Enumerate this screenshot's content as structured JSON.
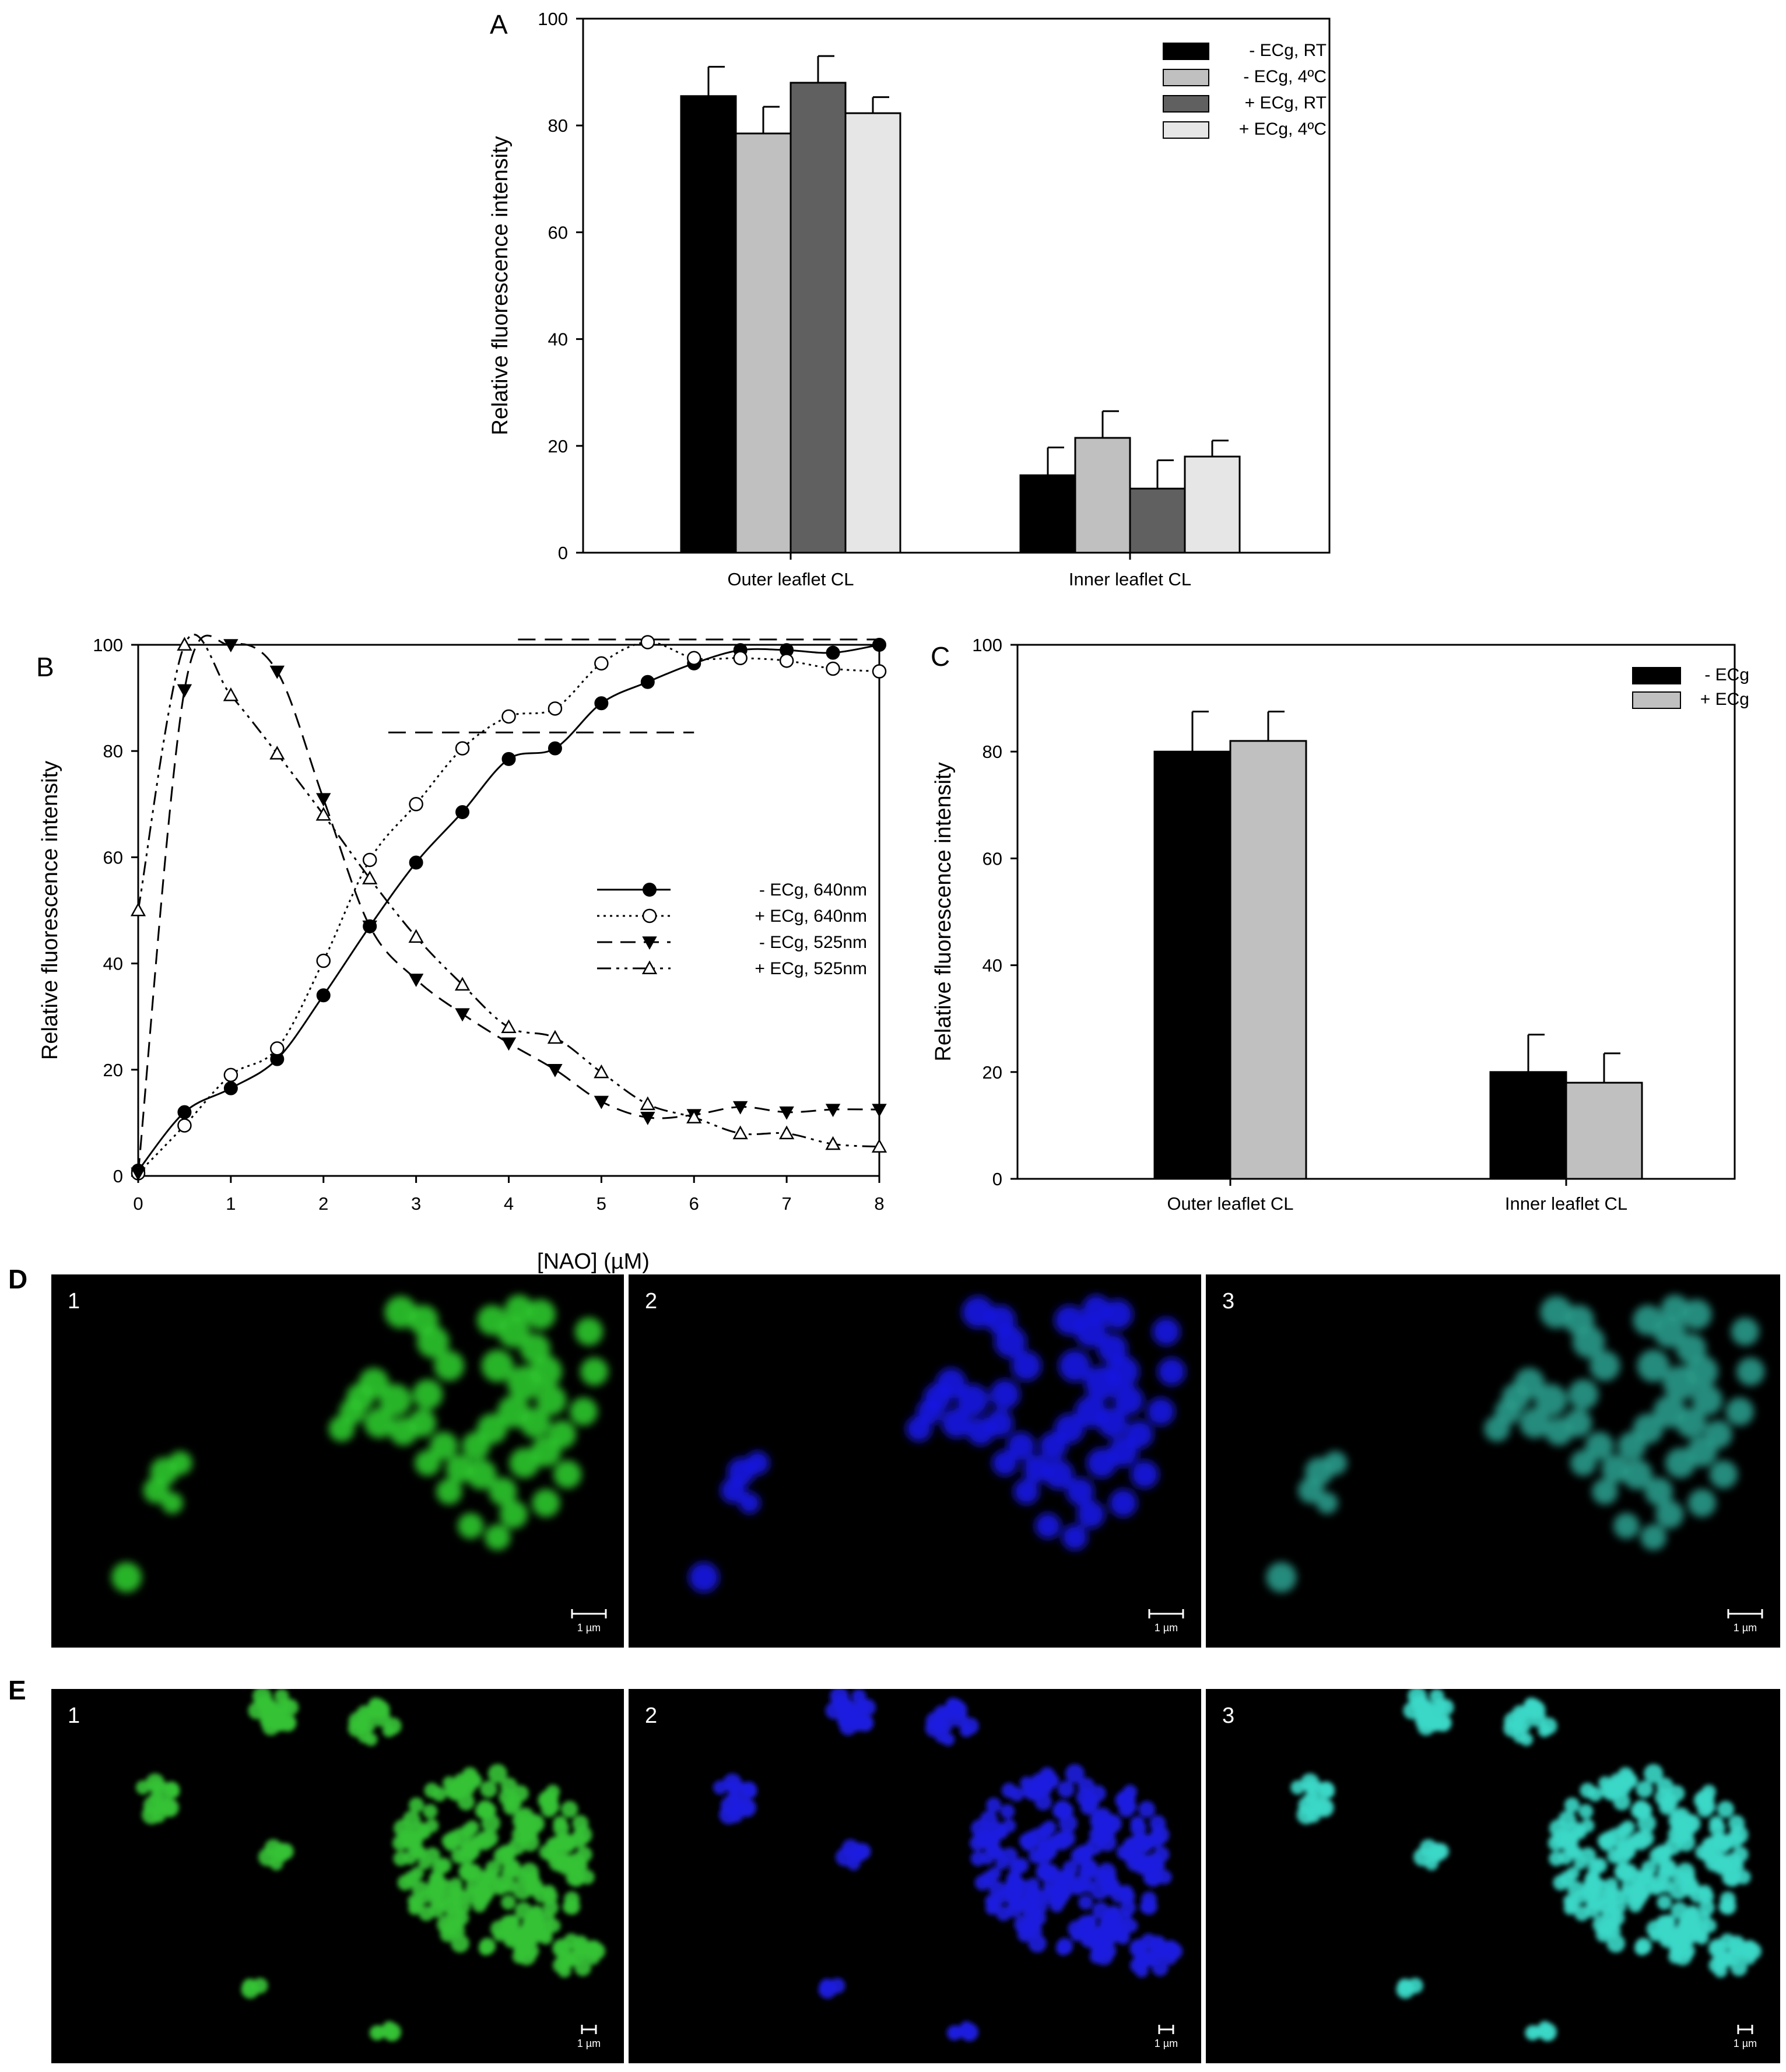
{
  "panels": {
    "A": "A",
    "B": "B",
    "C": "C",
    "D": "D",
    "E": "E"
  },
  "chart_data": [
    {
      "id": "A",
      "type": "bar",
      "ylabel": "Relative fluorescence intensity",
      "ylim": [
        0,
        100
      ],
      "yticks": [
        "0",
        "20",
        "40",
        "60",
        "80",
        "100"
      ],
      "categories": [
        "Outer leaflet CL",
        "Inner leaflet CL"
      ],
      "legend_position": "top-right",
      "series": [
        {
          "name": "- ECg, RT",
          "color": "#000000",
          "values": [
            85.5,
            14.5
          ],
          "errors": [
            5.5,
            5.2
          ]
        },
        {
          "name": "- ECg, 4ºC",
          "color": "#c0c0c0",
          "values": [
            78.5,
            21.5
          ],
          "errors": [
            5.0,
            5.0
          ]
        },
        {
          "name": "+ ECg, RT",
          "color": "#606060",
          "values": [
            88,
            12
          ],
          "errors": [
            5.0,
            5.3
          ]
        },
        {
          "name": "+ ECg, 4ºC",
          "color": "#e6e6e6",
          "values": [
            82.3,
            18
          ],
          "errors": [
            3.0,
            3.0
          ]
        }
      ]
    },
    {
      "id": "B",
      "type": "line",
      "xlabel": "[NAO] (µM)",
      "ylabel": "Relative fluorescence intensity",
      "xlim": [
        0,
        8
      ],
      "ylim": [
        0,
        100
      ],
      "xticks": [
        "0",
        "1",
        "2",
        "3",
        "4",
        "5",
        "6",
        "7",
        "8"
      ],
      "yticks": [
        "0",
        "20",
        "40",
        "60",
        "80",
        "100"
      ],
      "legend_position": "center-right",
      "series": [
        {
          "name": "- ECg, 640nm",
          "marker": "filled-circle",
          "dash": "solid",
          "x": [
            0,
            0.5,
            1,
            1.5,
            2,
            2.5,
            3,
            3.5,
            4,
            4.5,
            5,
            5.5,
            6,
            6.5,
            7,
            7.5,
            8
          ],
          "y": [
            1,
            12,
            16.5,
            22,
            34,
            47,
            59,
            68.5,
            78.5,
            80.5,
            89,
            93,
            96.5,
            99,
            99,
            98.5,
            100
          ]
        },
        {
          "name": "+ ECg, 640nm",
          "marker": "open-circle",
          "dash": "dotted",
          "x": [
            0,
            0.5,
            1,
            1.5,
            2,
            2.5,
            3,
            3.5,
            4,
            4.5,
            5,
            5.5,
            6,
            6.5,
            7,
            7.5,
            8
          ],
          "y": [
            0.5,
            9.5,
            19,
            24,
            40.5,
            59.5,
            70,
            80.5,
            86.5,
            88,
            96.5,
            100.5,
            97.5,
            97.5,
            97,
            95.5,
            95
          ]
        },
        {
          "name": "- ECg, 525nm",
          "marker": "filled-triangle-down",
          "dash": "dashed",
          "x": [
            0,
            0.5,
            1,
            1.5,
            2,
            2.5,
            3,
            3.5,
            4,
            4.5,
            5,
            5.5,
            6,
            6.5,
            7,
            7.5,
            8
          ],
          "y": [
            0.5,
            91.5,
            100,
            95,
            71,
            47,
            37,
            30.5,
            25,
            20,
            14,
            11,
            11.5,
            13,
            12,
            12.5,
            12.5
          ]
        },
        {
          "name": "+ ECg, 525nm",
          "marker": "open-triangle-up",
          "dash": "dash-dot-dot",
          "x": [
            0,
            0.5,
            1,
            1.5,
            2,
            2.5,
            3,
            3.5,
            4,
            4.5,
            5,
            5.5,
            6,
            6.5,
            7,
            7.5,
            8
          ],
          "y": [
            50,
            100,
            90.5,
            79.5,
            68,
            56,
            45,
            36,
            28,
            26,
            19.5,
            13.5,
            11,
            8,
            8,
            6,
            5.5
          ]
        }
      ],
      "reference_lines": [
        {
          "y": 83.5,
          "x": [
            2.7,
            6
          ]
        },
        {
          "y": 101,
          "x": [
            4.1,
            8
          ]
        }
      ]
    },
    {
      "id": "C",
      "type": "bar",
      "ylabel": "Relative fluorescence intensity",
      "ylim": [
        0,
        100
      ],
      "yticks": [
        "0",
        "20",
        "40",
        "60",
        "80",
        "100"
      ],
      "categories": [
        "Outer leaflet CL",
        "Inner leaflet CL"
      ],
      "legend_position": "top-right",
      "series": [
        {
          "name": "- ECg",
          "color": "#000000",
          "values": [
            80,
            20
          ],
          "errors": [
            7.5,
            7.0
          ]
        },
        {
          "name": "+ ECg",
          "color": "#c0c0c0",
          "values": [
            82,
            18
          ],
          "errors": [
            5.5,
            5.5
          ]
        }
      ]
    }
  ],
  "micrographs": {
    "D": {
      "images": [
        {
          "number": "1",
          "color": "#2fc82f",
          "scale_label": "1 µm"
        },
        {
          "number": "2",
          "color": "#1a1ae6",
          "scale_label": "1 µm"
        },
        {
          "number": "3",
          "color": "#2a9a8a",
          "scale_label": "1 µm"
        }
      ]
    },
    "E": {
      "images": [
        {
          "number": "1",
          "color": "#36c336",
          "scale_label": "1 µm"
        },
        {
          "number": "2",
          "color": "#1e1ee0",
          "scale_label": "1 µm"
        },
        {
          "number": "3",
          "color": "#3cd8c8",
          "scale_label": "1 µm"
        }
      ]
    }
  }
}
